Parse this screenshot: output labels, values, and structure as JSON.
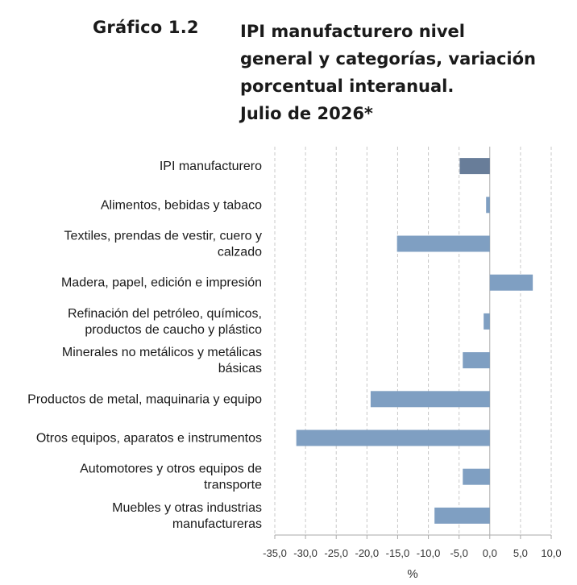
{
  "header": {
    "label": "Gráfico 1.2",
    "title_lines": [
      "IPI manufacturero nivel",
      "general y categorías, variación",
      "porcentual interanual.",
      "Julio de 2026*"
    ]
  },
  "chart_data": {
    "type": "bar",
    "orientation": "horizontal",
    "categories": [
      [
        "IPI manufacturero"
      ],
      [
        "Alimentos, bebidas y tabaco"
      ],
      [
        "Textiles, prendas de vestir, cuero y",
        "calzado"
      ],
      [
        "Madera, papel, edición e impresión"
      ],
      [
        "Refinación del petróleo, químicos,",
        "productos de caucho y plástico"
      ],
      [
        "Minerales no metálicos y metálicas",
        "básicas"
      ],
      [
        "Productos de metal, maquinaria y equipo"
      ],
      [
        "Otros equipos, aparatos e instrumentos"
      ],
      [
        "Automotores y otros equipos de",
        "transporte"
      ],
      [
        "Muebles y otras industrias",
        "manufactureras"
      ]
    ],
    "values": [
      -4.9,
      -0.6,
      -15.1,
      7.0,
      -1.0,
      -4.4,
      -19.4,
      -31.5,
      -4.4,
      -9.0
    ],
    "xlim": [
      -35,
      10
    ],
    "xticks": [
      "-35,0",
      "-30,0",
      "-25,0",
      "-20,0",
      "-15,0",
      "-10,0",
      "-5,0",
      "0,0",
      "5,0",
      "10,0"
    ],
    "xtick_values": [
      -35,
      -30,
      -25,
      -20,
      -15,
      -10,
      -5,
      0,
      5,
      10
    ],
    "xlabel": "%",
    "grid": "vertical-dashed",
    "colors": {
      "total": "#687d99",
      "category": "#7f9fc2",
      "grid": "#c8c8c8",
      "axis": "#aaaaaa"
    }
  }
}
